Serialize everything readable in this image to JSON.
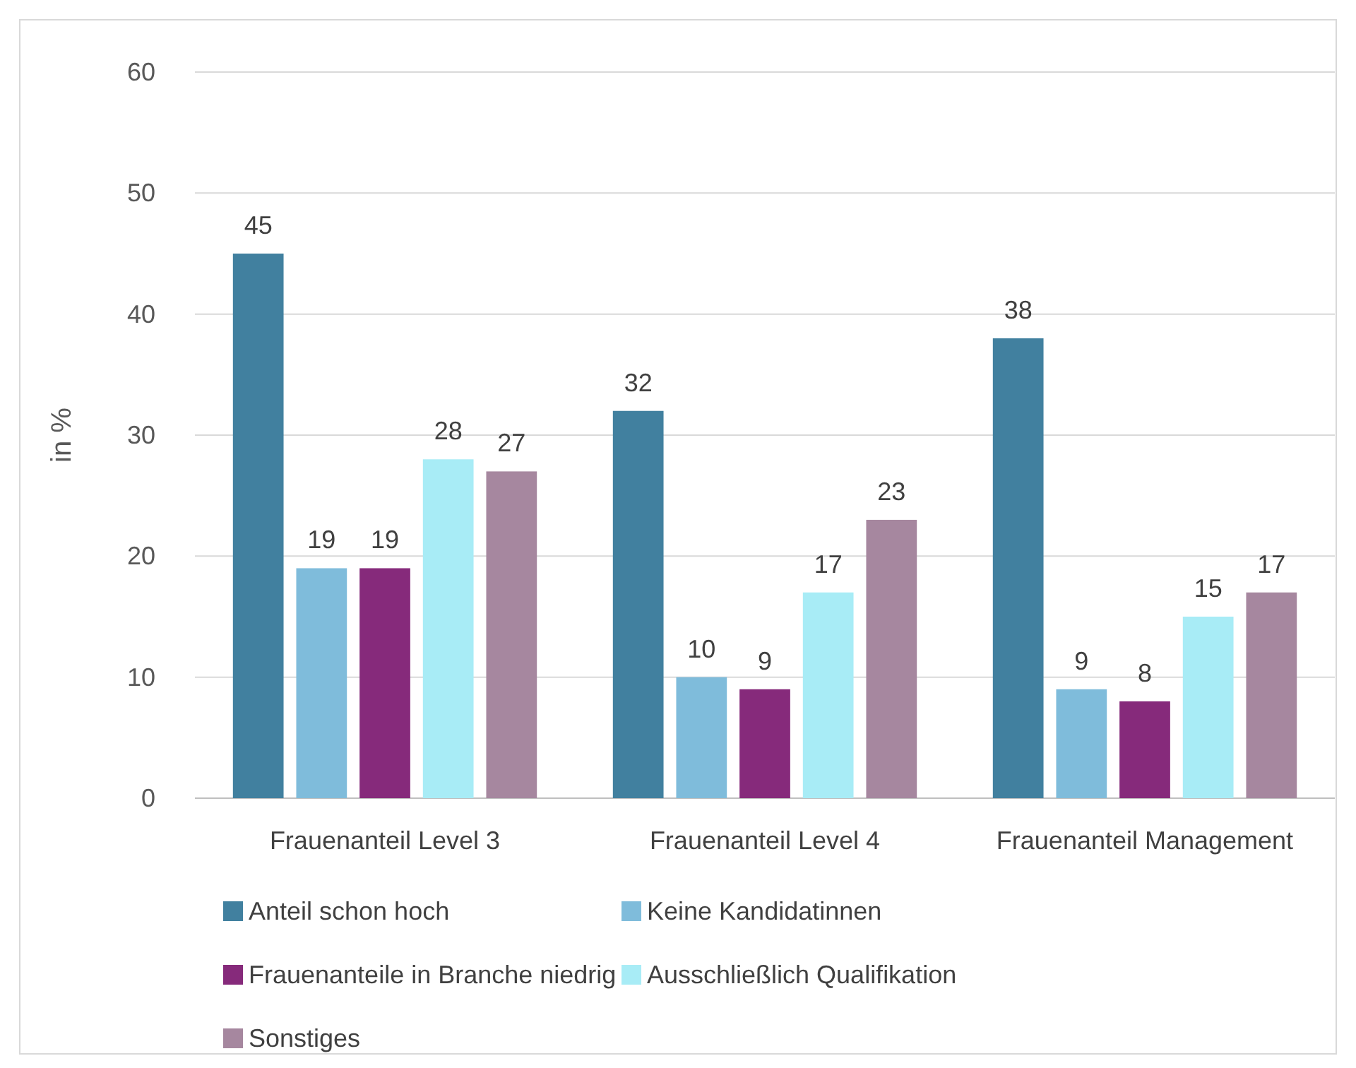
{
  "chart_data": {
    "type": "bar",
    "ylabel": "in %",
    "categories": [
      "Frauenanteil Level 3",
      "Frauenanteil Level 4",
      "Frauenanteil Management"
    ],
    "series": [
      {
        "name": "Anteil schon hoch",
        "color": "#41809f",
        "values": [
          45,
          32,
          38
        ]
      },
      {
        "name": "Keine Kandidatinnen",
        "color": "#7fbcdb",
        "values": [
          19,
          10,
          9
        ]
      },
      {
        "name": "Frauenanteile in Branche niedrig",
        "color": "#862a7b",
        "values": [
          19,
          9,
          8
        ]
      },
      {
        "name": "Ausschließlich Qualifikation",
        "color": "#a8ecf6",
        "values": [
          28,
          17,
          15
        ]
      },
      {
        "name": "Sonstiges",
        "color": "#a6879f",
        "values": [
          27,
          23,
          17
        ]
      }
    ],
    "ylim": [
      0,
      60
    ],
    "yticks": [
      0,
      10,
      20,
      30,
      40,
      50,
      60
    ],
    "grid": "y",
    "legend": "bottom",
    "data_labels": true
  }
}
